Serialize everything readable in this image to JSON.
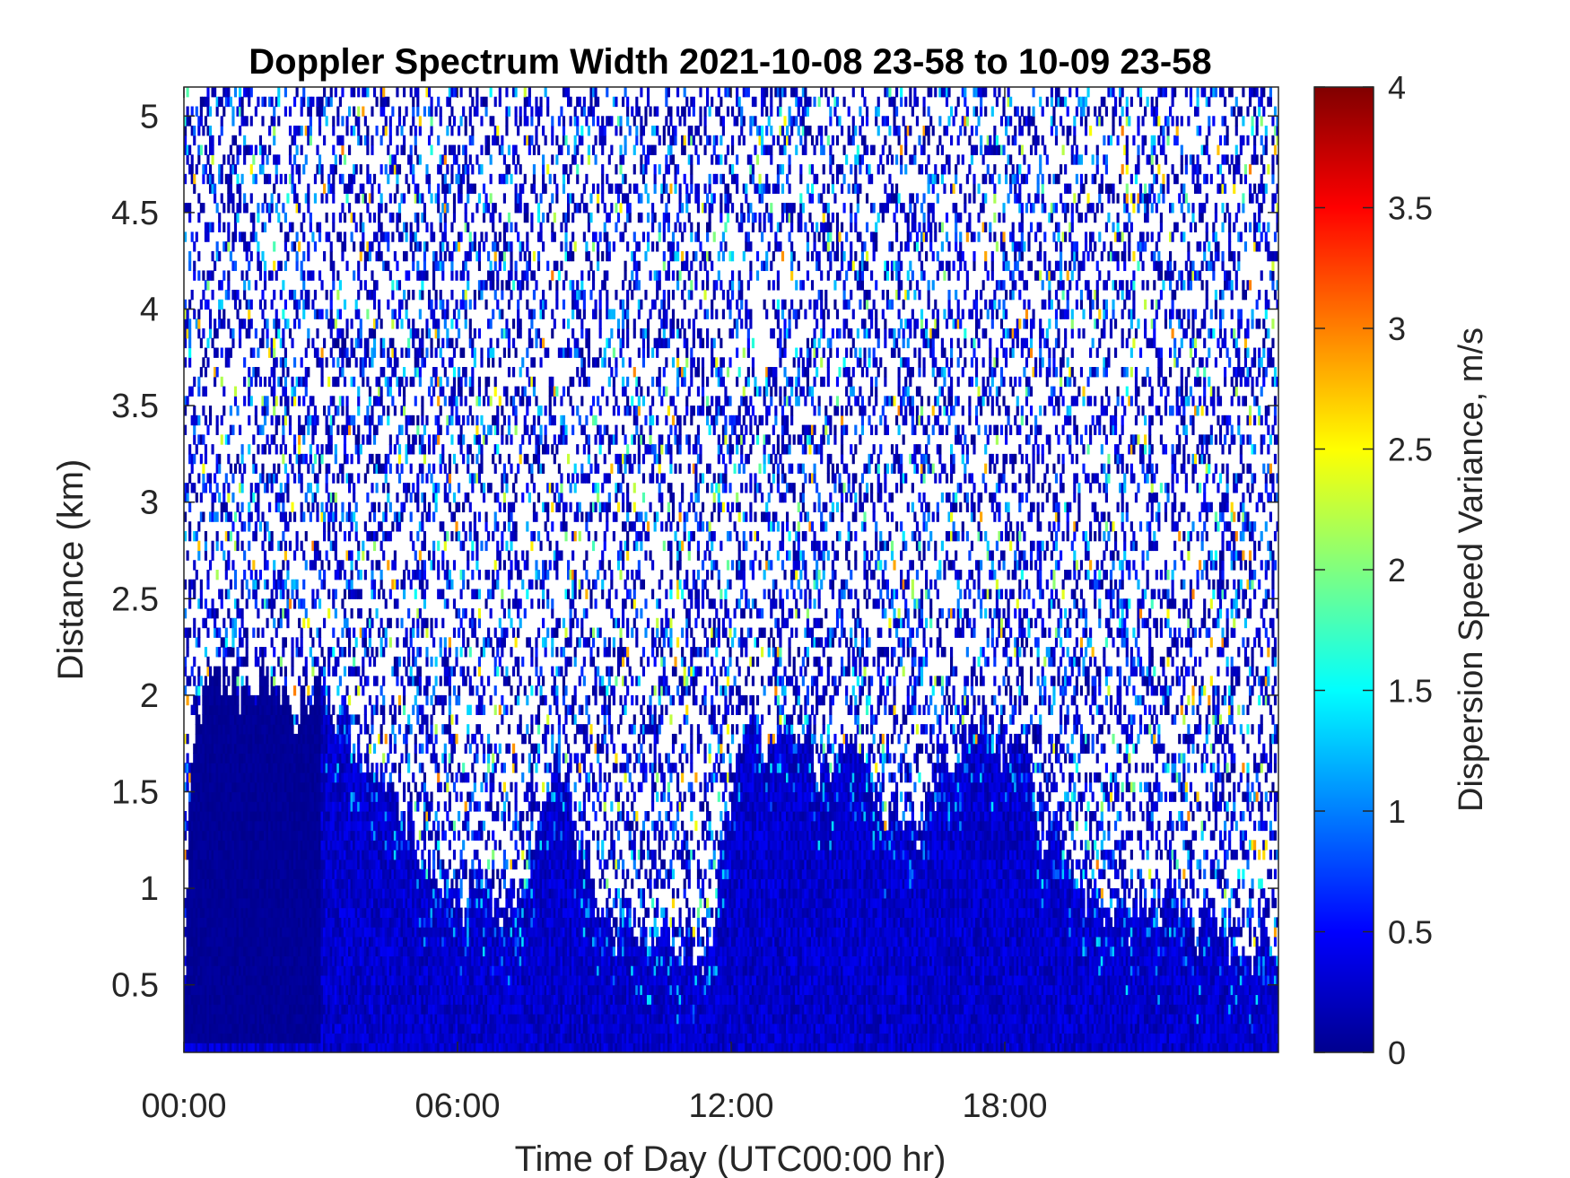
{
  "chart_data": {
    "type": "heatmap",
    "title": "Doppler Spectrum Width 2021-10-08 23-58 to 10-09 23-58",
    "xlabel": "Time of Day (UTC00:00 hr)",
    "ylabel": "Distance (km)",
    "x_ticks": [
      {
        "value": 0,
        "label": "00:00"
      },
      {
        "value": 6,
        "label": "06:00"
      },
      {
        "value": 12,
        "label": "12:00"
      },
      {
        "value": 18,
        "label": "18:00"
      }
    ],
    "y_ticks": [
      {
        "value": 0.5,
        "label": "0.5"
      },
      {
        "value": 1,
        "label": "1"
      },
      {
        "value": 1.5,
        "label": "1.5"
      },
      {
        "value": 2,
        "label": "2"
      },
      {
        "value": 2.5,
        "label": "2.5"
      },
      {
        "value": 3,
        "label": "3"
      },
      {
        "value": 3.5,
        "label": "3.5"
      },
      {
        "value": 4,
        "label": "4"
      },
      {
        "value": 4.5,
        "label": "4.5"
      },
      {
        "value": 5,
        "label": "5"
      }
    ],
    "xlim": [
      0,
      24
    ],
    "ylim": [
      0.15,
      5.15
    ],
    "colorbar": {
      "label": "Dispersion Speed Variance, m/s",
      "colormap": "jet",
      "clim": [
        0,
        4
      ],
      "ticks": [
        {
          "value": 0,
          "label": "0"
        },
        {
          "value": 0.5,
          "label": "0.5"
        },
        {
          "value": 1,
          "label": "1"
        },
        {
          "value": 1.5,
          "label": "1.5"
        },
        {
          "value": 2,
          "label": "2"
        },
        {
          "value": 2.5,
          "label": "2.5"
        },
        {
          "value": 3,
          "label": "3"
        },
        {
          "value": 3.5,
          "label": "3.5"
        },
        {
          "value": 4,
          "label": "4"
        }
      ]
    },
    "approx_dense_layer_top_km": [
      {
        "x": 0.0,
        "top": 2.05
      },
      {
        "x": 0.8,
        "top": 2.05
      },
      {
        "x": 3.1,
        "top": 1.95
      },
      {
        "x": 3.6,
        "top": 1.8
      },
      {
        "x": 4.5,
        "top": 1.4
      },
      {
        "x": 5.5,
        "top": 1.0
      },
      {
        "x": 7.0,
        "top": 0.85
      },
      {
        "x": 8.2,
        "top": 1.6
      },
      {
        "x": 8.8,
        "top": 0.9
      },
      {
        "x": 10.0,
        "top": 0.7
      },
      {
        "x": 11.3,
        "top": 0.55
      },
      {
        "x": 12.0,
        "top": 1.6
      },
      {
        "x": 14.5,
        "top": 1.65
      },
      {
        "x": 16.0,
        "top": 1.2
      },
      {
        "x": 16.8,
        "top": 1.75
      },
      {
        "x": 18.5,
        "top": 1.6
      },
      {
        "x": 19.5,
        "top": 0.85
      },
      {
        "x": 21.0,
        "top": 0.8
      },
      {
        "x": 22.0,
        "top": 0.75
      },
      {
        "x": 24.0,
        "top": 0.8
      }
    ]
  }
}
